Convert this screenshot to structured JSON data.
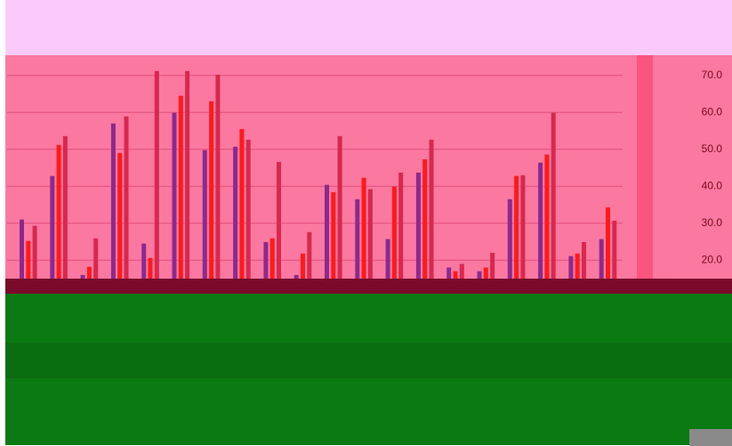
{
  "chart_data": {
    "type": "bar",
    "categories": [
      null,
      null,
      null,
      null,
      null,
      null,
      null,
      null,
      null,
      null,
      null,
      null,
      null,
      null,
      null,
      null,
      null,
      null,
      null,
      null
    ],
    "series": [
      {
        "color": "#8b2a8f",
        "values": [
          31,
          42.8,
          16,
          57,
          24.5,
          59.9,
          49.8,
          50.7,
          24.9,
          16,
          40.4,
          36.5,
          25.7,
          43.7,
          18,
          17,
          36.5,
          46.4,
          21.1,
          25.7
        ]
      },
      {
        "color": "#ff1a1a",
        "values": [
          25.2,
          51.2,
          18.2,
          49,
          20.6,
          64.5,
          63,
          55.5,
          25.9,
          21.8,
          38.4,
          42.3,
          39.9,
          47.3,
          17,
          18,
          42.8,
          48.6,
          21.8,
          34.3
        ]
      },
      {
        "color": "#d8284e",
        "values": [
          29.3,
          53.6,
          25.9,
          58.9,
          71.2,
          71.2,
          70.2,
          52.6,
          46.6,
          27.6,
          53.6,
          39.2,
          43.7,
          52.6,
          19,
          22,
          43,
          59.9,
          24.9,
          30.7
        ]
      }
    ],
    "ylim": [
      15,
      75
    ],
    "yticks": [
      {
        "value": 20,
        "label": "20.0"
      },
      {
        "value": 30,
        "label": "30.0"
      },
      {
        "value": 40,
        "label": "40.0"
      },
      {
        "value": 50,
        "label": "50.0"
      },
      {
        "value": 60,
        "label": "60.0"
      },
      {
        "value": 70,
        "label": "70.0"
      }
    ],
    "grid": true
  }
}
